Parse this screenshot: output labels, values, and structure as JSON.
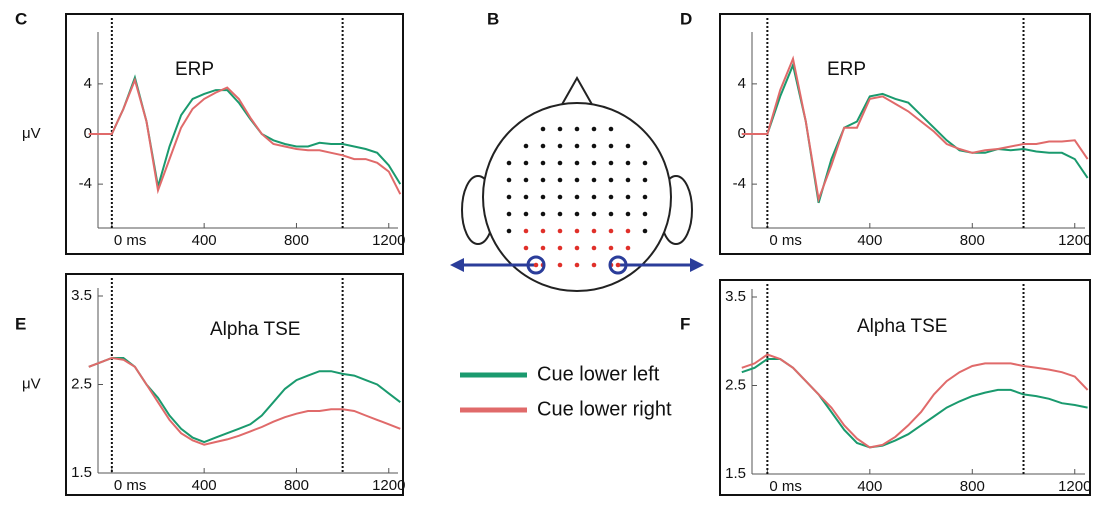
{
  "chart_data": [
    {
      "type": "line",
      "panel": "C",
      "title": "ERP",
      "ylabel": "μV",
      "x": [
        -100,
        -50,
        0,
        50,
        100,
        150,
        200,
        250,
        300,
        350,
        400,
        450,
        500,
        550,
        600,
        650,
        700,
        750,
        800,
        850,
        900,
        950,
        1000,
        1050,
        1100,
        1150,
        1200,
        1250
      ],
      "series": [
        {
          "values": [
            0,
            0,
            0,
            2,
            4.5,
            1,
            -4.2,
            -1,
            1.5,
            2.8,
            3.2,
            3.5,
            3.5,
            2.5,
            1.2,
            0,
            -0.5,
            -0.8,
            -1,
            -1,
            -0.7,
            -0.8,
            -0.8,
            -1,
            -1.2,
            -1.5,
            -2.5,
            -4
          ]
        },
        {
          "values": [
            0,
            0,
            0,
            2,
            4.3,
            1,
            -4.5,
            -2,
            0.5,
            2,
            2.8,
            3.3,
            3.7,
            2.8,
            1.3,
            0,
            -0.8,
            -1,
            -1.2,
            -1.3,
            -1.3,
            -1.5,
            -1.7,
            -2,
            -2,
            -2.3,
            -3,
            -4.8
          ]
        }
      ],
      "xlim": [
        -60,
        1240
      ],
      "xticks": [
        {
          "value": 0,
          "label": "0 ms"
        },
        400,
        800,
        1200
      ],
      "ylim": [
        -7.5,
        7.5
      ],
      "yticks": [
        -4,
        0,
        4
      ],
      "vlines": [
        0,
        1000
      ]
    },
    {
      "type": "line",
      "panel": "D",
      "title": "ERP",
      "x": [
        -100,
        -50,
        0,
        50,
        100,
        150,
        200,
        250,
        300,
        350,
        400,
        450,
        500,
        550,
        600,
        650,
        700,
        750,
        800,
        850,
        900,
        950,
        1000,
        1050,
        1100,
        1150,
        1200,
        1250
      ],
      "series": [
        {
          "values": [
            0,
            0,
            0,
            3,
            5.5,
            1,
            -5.5,
            -2,
            0.5,
            1,
            3,
            3.2,
            2.8,
            2.5,
            1.5,
            0.5,
            -0.5,
            -1.3,
            -1.5,
            -1.5,
            -1.2,
            -1.3,
            -1.2,
            -1.4,
            -1.5,
            -1.5,
            -2,
            -3.5
          ]
        },
        {
          "values": [
            0,
            0,
            0,
            3.5,
            6,
            1,
            -5.2,
            -2.5,
            0.5,
            0.5,
            2.8,
            3,
            2.4,
            1.8,
            1,
            0.2,
            -0.8,
            -1.2,
            -1.5,
            -1.3,
            -1.2,
            -1,
            -0.8,
            -0.8,
            -0.6,
            -0.6,
            -0.5,
            -2
          ]
        }
      ],
      "xlim": [
        -60,
        1240
      ],
      "xticks": [
        {
          "value": 0,
          "label": "0 ms"
        },
        400,
        800,
        1200
      ],
      "ylim": [
        -7.5,
        7.5
      ],
      "yticks": [
        -4,
        0,
        4
      ],
      "vlines": [
        0,
        1000
      ]
    },
    {
      "type": "line",
      "panel": "E",
      "title": "Alpha TSE",
      "ylabel": "μV",
      "x": [
        -100,
        -50,
        0,
        50,
        100,
        150,
        200,
        250,
        300,
        350,
        400,
        450,
        500,
        550,
        600,
        650,
        700,
        750,
        800,
        850,
        900,
        950,
        1000,
        1050,
        1100,
        1150,
        1200,
        1250
      ],
      "series": [
        {
          "values": [
            2.7,
            2.75,
            2.8,
            2.8,
            2.7,
            2.5,
            2.35,
            2.15,
            2,
            1.9,
            1.85,
            1.9,
            1.95,
            2,
            2.05,
            2.15,
            2.3,
            2.45,
            2.55,
            2.6,
            2.65,
            2.65,
            2.62,
            2.6,
            2.55,
            2.5,
            2.4,
            2.3
          ]
        },
        {
          "values": [
            2.7,
            2.75,
            2.8,
            2.78,
            2.7,
            2.5,
            2.3,
            2.1,
            1.95,
            1.87,
            1.82,
            1.85,
            1.88,
            1.92,
            1.97,
            2.02,
            2.08,
            2.13,
            2.17,
            2.2,
            2.2,
            2.22,
            2.22,
            2.2,
            2.15,
            2.1,
            2.05,
            2
          ]
        }
      ],
      "xlim": [
        -60,
        1240
      ],
      "xticks": [
        {
          "value": 0,
          "label": "0 ms"
        },
        400,
        800,
        1200
      ],
      "ylim": [
        1.5,
        3.5
      ],
      "yticks": [
        1.5,
        2.5,
        3.5
      ],
      "vlines": [
        0,
        1000
      ]
    },
    {
      "type": "line",
      "panel": "F",
      "title": "Alpha TSE",
      "x": [
        -100,
        -50,
        0,
        50,
        100,
        150,
        200,
        250,
        300,
        350,
        400,
        450,
        500,
        550,
        600,
        650,
        700,
        750,
        800,
        850,
        900,
        950,
        1000,
        1050,
        1100,
        1150,
        1200,
        1250
      ],
      "series": [
        {
          "values": [
            2.65,
            2.7,
            2.8,
            2.8,
            2.7,
            2.55,
            2.4,
            2.2,
            2,
            1.85,
            1.8,
            1.82,
            1.88,
            1.95,
            2.05,
            2.15,
            2.25,
            2.32,
            2.38,
            2.42,
            2.45,
            2.45,
            2.4,
            2.38,
            2.35,
            2.3,
            2.28,
            2.25
          ]
        },
        {
          "values": [
            2.7,
            2.75,
            2.85,
            2.8,
            2.7,
            2.55,
            2.4,
            2.25,
            2.05,
            1.9,
            1.8,
            1.83,
            1.92,
            2.05,
            2.2,
            2.4,
            2.55,
            2.65,
            2.72,
            2.75,
            2.75,
            2.75,
            2.72,
            2.7,
            2.68,
            2.65,
            2.6,
            2.45
          ]
        }
      ],
      "xlim": [
        -60,
        1240
      ],
      "xticks": [
        {
          "value": 0,
          "label": "0 ms"
        },
        400,
        800,
        1200
      ],
      "ylim": [
        1.5,
        3.5
      ],
      "yticks": [
        1.5,
        2.5,
        3.5
      ],
      "vlines": [
        0,
        1000
      ]
    }
  ],
  "legend": [
    {
      "name": "Cue lower left",
      "color": "#1a9a6e"
    },
    {
      "name": "Cue lower right",
      "color": "#e06a6a"
    }
  ],
  "diagram": {
    "panel": "B"
  }
}
